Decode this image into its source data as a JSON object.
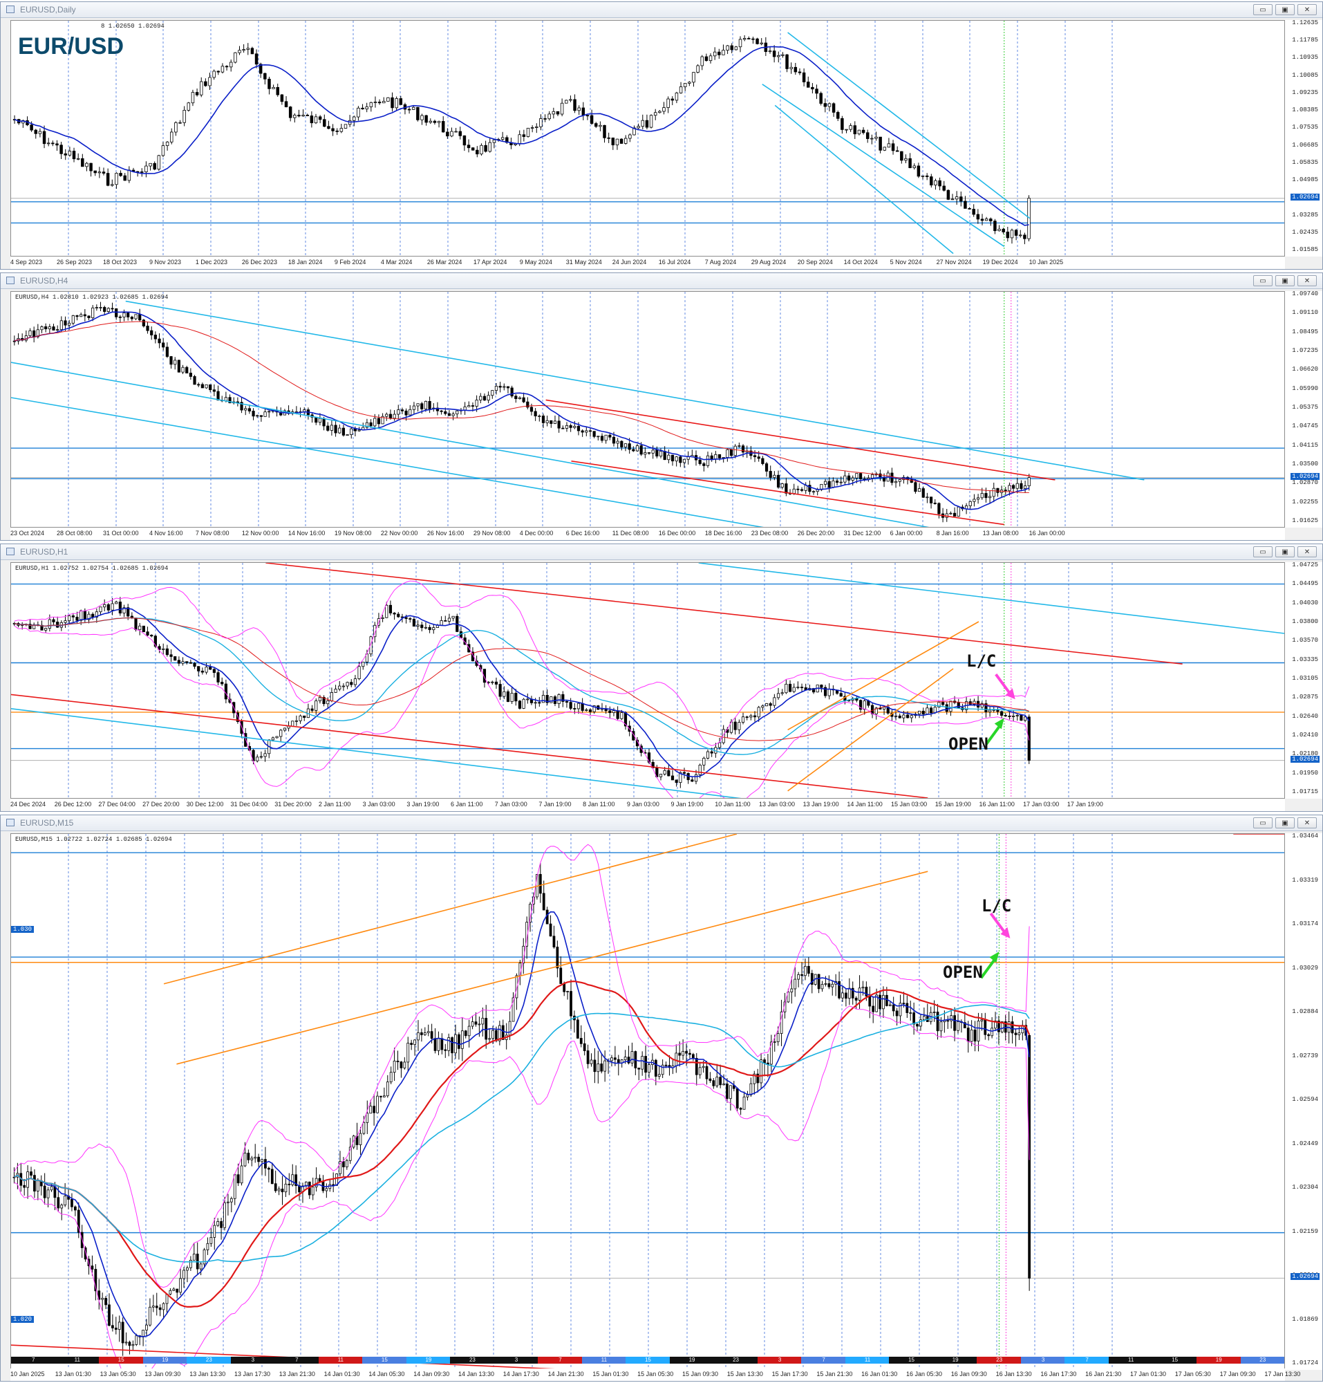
{
  "symbol_label": "EUR/USD",
  "panels": [
    {
      "id": "daily",
      "title": "EURUSD,Daily",
      "info": "8 1.02650 1.02694",
      "price_labels": [
        "1.12635",
        "1.11785",
        "1.10935",
        "1.10085",
        "1.09235",
        "1.08385",
        "1.07535",
        "1.06685",
        "1.05835",
        "1.04985",
        "1.04135",
        "1.03285",
        "1.02435",
        "1.01585"
      ],
      "current_price": "1.02694",
      "x_labels": [
        "4 Sep 2023",
        "26 Sep 2023",
        "18 Oct 2023",
        "9 Nov 2023",
        "1 Dec 2023",
        "26 Dec 2023",
        "18 Jan 2024",
        "9 Feb 2024",
        "4 Mar 2024",
        "26 Mar 2024",
        "17 Apr 2024",
        "9 May 2024",
        "31 May 2024",
        "24 Jun 2024",
        "16 Jul 2024",
        "7 Aug 2024",
        "29 Aug 2024",
        "20 Sep 2024",
        "14 Oct 2024",
        "5 Nov 2024",
        "27 Nov 2024",
        "19 Dec 2024",
        "10 Jan 2025"
      ]
    },
    {
      "id": "h4",
      "title": "EURUSD,H4",
      "info": "EURUSD,H4  1.02810 1.02923 1.02685 1.02694",
      "price_labels": [
        "1.09740",
        "1.09110",
        "1.08495",
        "1.07235",
        "1.06620",
        "1.05990",
        "1.05375",
        "1.04745",
        "1.04115",
        "1.03500",
        "1.02870",
        "1.02255",
        "1.01625"
      ],
      "current_price": "1.02694",
      "x_labels": [
        "23 Oct 2024",
        "28 Oct 08:00",
        "31 Oct 00:00",
        "4 Nov 16:00",
        "7 Nov 08:00",
        "12 Nov 00:00",
        "14 Nov 16:00",
        "19 Nov 08:00",
        "22 Nov 00:00",
        "26 Nov 16:00",
        "29 Nov 08:00",
        "4 Dec 00:00",
        "6 Dec 16:00",
        "11 Dec 08:00",
        "16 Dec 00:00",
        "18 Dec 16:00",
        "23 Dec 08:00",
        "26 Dec 20:00",
        "31 Dec 12:00",
        "6 Jan 00:00",
        "8 Jan 16:00",
        "13 Jan 08:00",
        "16 Jan 00:00"
      ]
    },
    {
      "id": "h1",
      "title": "EURUSD,H1",
      "info": "EURUSD,H1  1.02752 1.02754 1.02685 1.02694",
      "price_labels": [
        "1.04725",
        "1.04495",
        "1.04030",
        "1.03800",
        "1.03570",
        "1.03335",
        "1.03105",
        "1.02875",
        "1.02640",
        "1.02410",
        "1.02180",
        "1.01950",
        "1.01715"
      ],
      "current_price": "1.02694",
      "x_labels": [
        "24 Dec 2024",
        "26 Dec 12:00",
        "27 Dec 04:00",
        "27 Dec 20:00",
        "30 Dec 12:00",
        "31 Dec 04:00",
        "31 Dec 20:00",
        "2 Jan 11:00",
        "3 Jan 03:00",
        "3 Jan 19:00",
        "6 Jan 11:00",
        "7 Jan 03:00",
        "7 Jan 19:00",
        "8 Jan 11:00",
        "9 Jan 03:00",
        "9 Jan 19:00",
        "10 Jan 11:00",
        "13 Jan 03:00",
        "13 Jan 19:00",
        "14 Jan 11:00",
        "15 Jan 03:00",
        "15 Jan 19:00",
        "16 Jan 11:00",
        "17 Jan 03:00",
        "17 Jan 19:00"
      ],
      "annotations": {
        "lc": "L/C",
        "open": "OPEN"
      }
    },
    {
      "id": "m15",
      "title": "EURUSD,M15",
      "info": "EURUSD,M15  1.02722 1.02724 1.02685 1.02694",
      "price_labels": [
        "1.03464",
        "1.03319",
        "1.03174",
        "1.03029",
        "1.02884",
        "1.02739",
        "1.02594",
        "1.02449",
        "1.02304",
        "1.02159",
        "1.02014",
        "1.01869",
        "1.01724"
      ],
      "current_price": "1.02694",
      "left_badges": [
        "1.030",
        "1.020"
      ],
      "x_labels": [
        "10 Jan 2025",
        "13 Jan 01:30",
        "13 Jan 05:30",
        "13 Jan 09:30",
        "13 Jan 13:30",
        "13 Jan 17:30",
        "13 Jan 21:30",
        "14 Jan 01:30",
        "14 Jan 05:30",
        "14 Jan 09:30",
        "14 Jan 13:30",
        "14 Jan 17:30",
        "14 Jan 21:30",
        "15 Jan 01:30",
        "15 Jan 05:30",
        "15 Jan 09:30",
        "15 Jan 13:30",
        "15 Jan 17:30",
        "15 Jan 21:30",
        "16 Jan 01:30",
        "16 Jan 05:30",
        "16 Jan 09:30",
        "16 Jan 13:30",
        "16 Jan 17:30",
        "16 Jan 21:30",
        "17 Jan 01:30",
        "17 Jan 05:30",
        "17 Jan 09:30",
        "17 Jan 13:30"
      ],
      "session_hours": [
        "7",
        "11",
        "15",
        "19",
        "23",
        "3",
        "7",
        "11",
        "15",
        "19",
        "23",
        "3",
        "7",
        "11",
        "15",
        "19",
        "23",
        "3",
        "7",
        "11",
        "15",
        "19",
        "23",
        "3",
        "7",
        "11",
        "15",
        "19",
        "23"
      ],
      "annotations": {
        "lc": "L/C",
        "open": "OPEN"
      }
    }
  ],
  "window_buttons": {
    "minimize": "▭",
    "maximize": "▣",
    "close": "✕"
  },
  "colors": {
    "candle": "#000000",
    "ma_blue": "#0a1fc8",
    "ma_cyan": "#1ab0e0",
    "ma_red": "#e01818",
    "bollinger": "#ff33ff",
    "channel_cyan": "#22b8e8",
    "channel_red": "#e81818",
    "channel_orange": "#ff8a10",
    "level_blue": "#1c7fd6",
    "grid_dashed": "#2d62d8",
    "open_arrow": "#28d628",
    "lc_arrow": "#ff44dd"
  }
}
